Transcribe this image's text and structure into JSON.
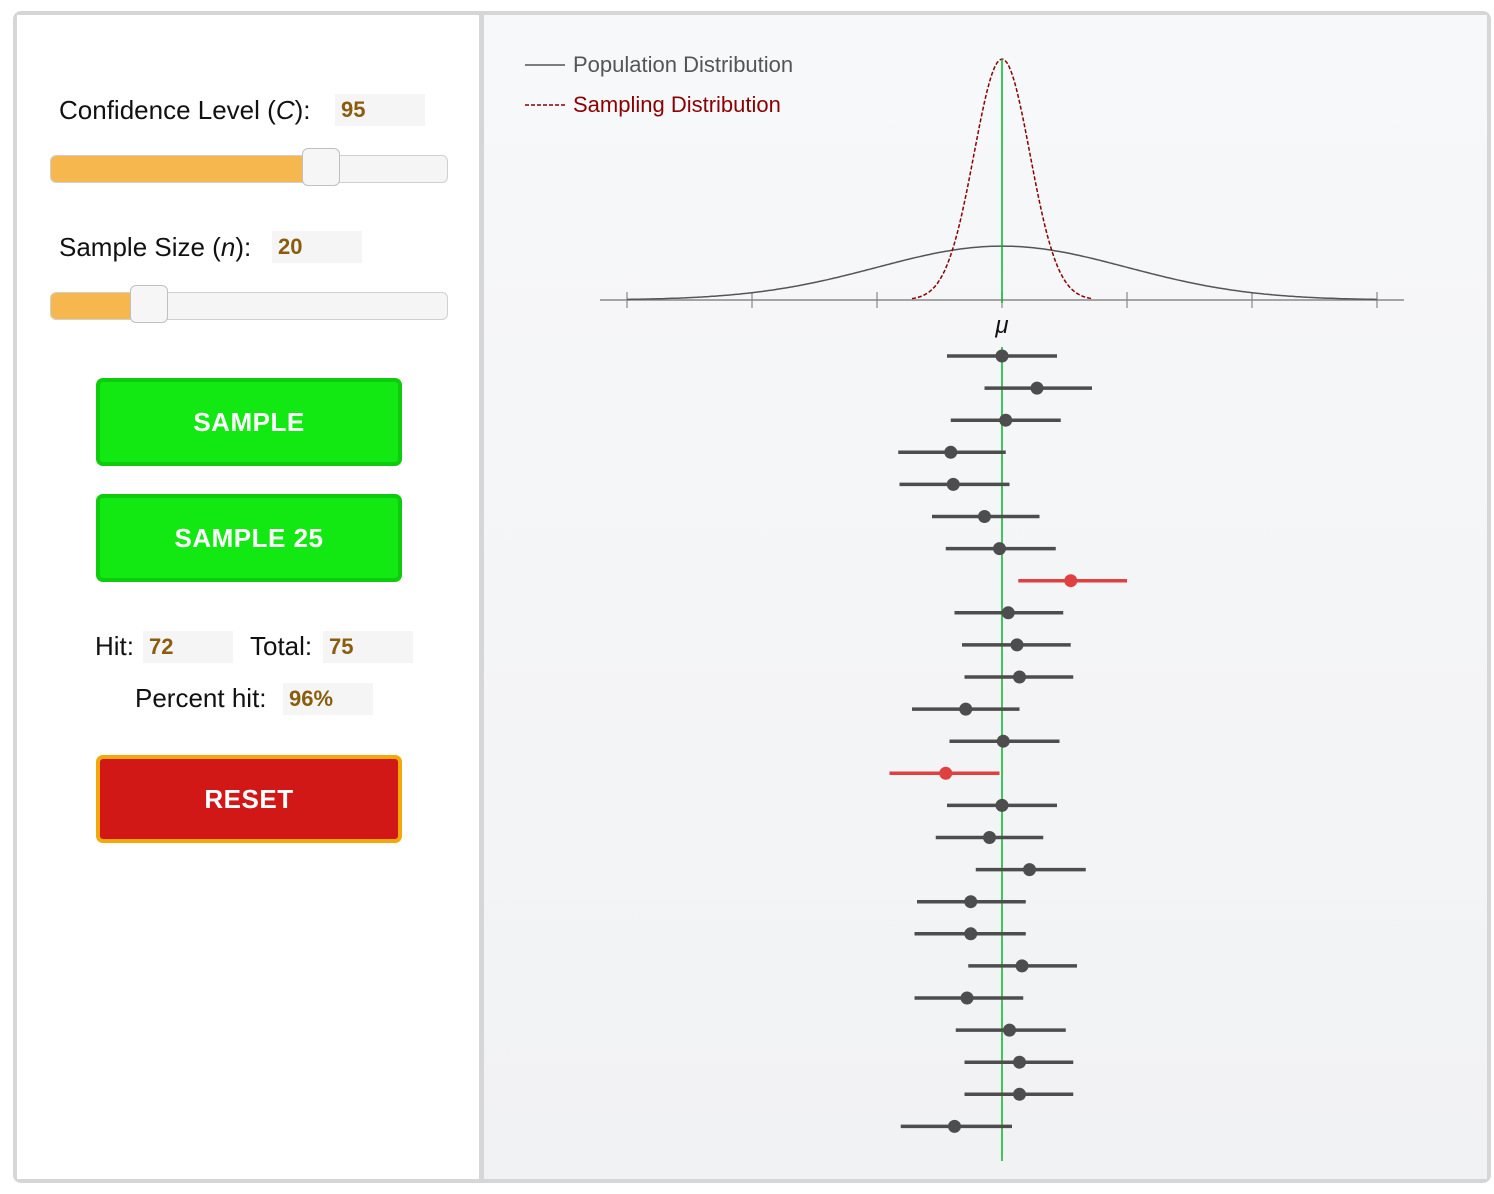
{
  "controls": {
    "confidence": {
      "label_prefix": "Confidence Level (",
      "label_var": "C",
      "label_suffix": "):",
      "value": "95",
      "slider_fraction": 0.7
    },
    "sample_size": {
      "label_prefix": "Sample Size (",
      "label_var": "n",
      "label_suffix": "):",
      "value": "20",
      "slider_fraction": 0.22
    }
  },
  "buttons": {
    "sample": "SAMPLE",
    "sample25": "SAMPLE 25",
    "reset": "RESET"
  },
  "stats": {
    "hit_label": "Hit:",
    "hit_value": "72",
    "total_label": "Total:",
    "total_value": "75",
    "percent_label": "Percent hit:",
    "percent_value": "96%"
  },
  "legend": {
    "population": "Population Distribution",
    "sampling": "Sampling Distribution"
  },
  "colors": {
    "population_line": "#555555",
    "sampling_line": "#8b0000",
    "mu_line": "#00b828",
    "interval_hit": "#4d4d4d",
    "interval_miss": "#e04040",
    "slider_fill": "#f6b74f",
    "button_green": "#12e812",
    "button_red": "#d21717"
  },
  "chart_data": {
    "type": "scatter",
    "center_label": "μ",
    "population_sd": 1.0,
    "sampling_sd": 0.2236,
    "x_range": [
      -3,
      3
    ],
    "tick_values": [
      -3,
      -2,
      -1,
      0,
      1,
      2,
      3
    ],
    "intervals": [
      {
        "mean": 0.0,
        "low": -0.44,
        "high": 0.44,
        "hit": true
      },
      {
        "mean": 0.28,
        "low": -0.14,
        "high": 0.72,
        "hit": true
      },
      {
        "mean": 0.03,
        "low": -0.41,
        "high": 0.47,
        "hit": true
      },
      {
        "mean": -0.41,
        "low": -0.83,
        "high": 0.03,
        "hit": true
      },
      {
        "mean": -0.39,
        "low": -0.82,
        "high": 0.06,
        "hit": true
      },
      {
        "mean": -0.14,
        "low": -0.56,
        "high": 0.3,
        "hit": true
      },
      {
        "mean": -0.02,
        "low": -0.45,
        "high": 0.43,
        "hit": true
      },
      {
        "mean": 0.55,
        "low": 0.13,
        "high": 1.0,
        "hit": false
      },
      {
        "mean": 0.05,
        "low": -0.38,
        "high": 0.49,
        "hit": true
      },
      {
        "mean": 0.12,
        "low": -0.32,
        "high": 0.55,
        "hit": true
      },
      {
        "mean": 0.14,
        "low": -0.3,
        "high": 0.57,
        "hit": true
      },
      {
        "mean": -0.29,
        "low": -0.72,
        "high": 0.14,
        "hit": true
      },
      {
        "mean": 0.01,
        "low": -0.42,
        "high": 0.46,
        "hit": true
      },
      {
        "mean": -0.45,
        "low": -0.9,
        "high": -0.02,
        "hit": false
      },
      {
        "mean": 0.0,
        "low": -0.44,
        "high": 0.44,
        "hit": true
      },
      {
        "mean": -0.1,
        "low": -0.53,
        "high": 0.33,
        "hit": true
      },
      {
        "mean": 0.22,
        "low": -0.21,
        "high": 0.67,
        "hit": true
      },
      {
        "mean": -0.25,
        "low": -0.68,
        "high": 0.19,
        "hit": true
      },
      {
        "mean": -0.25,
        "low": -0.7,
        "high": 0.19,
        "hit": true
      },
      {
        "mean": 0.16,
        "low": -0.27,
        "high": 0.6,
        "hit": true
      },
      {
        "mean": -0.28,
        "low": -0.7,
        "high": 0.17,
        "hit": true
      },
      {
        "mean": 0.06,
        "low": -0.37,
        "high": 0.51,
        "hit": true
      },
      {
        "mean": 0.14,
        "low": -0.3,
        "high": 0.57,
        "hit": true
      },
      {
        "mean": 0.14,
        "low": -0.3,
        "high": 0.57,
        "hit": true
      },
      {
        "mean": -0.38,
        "low": -0.81,
        "high": 0.08,
        "hit": true
      }
    ]
  }
}
